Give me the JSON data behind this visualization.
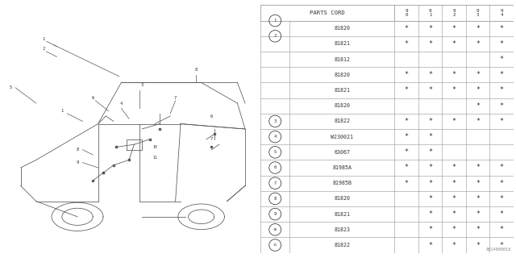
{
  "bg_color": "#ffffff",
  "line_color": "#aaaaaa",
  "text_color": "#333333",
  "header_parts": "PARTS CORD",
  "header_years": [
    "9\n0",
    "9\n1",
    "9\n2",
    "9\n3",
    "9\n4"
  ],
  "rows": [
    {
      "num": "1",
      "parts": [
        "81820",
        "81821"
      ],
      "stars": [
        [
          "*",
          "*",
          "*",
          "*",
          "*"
        ],
        [
          "*",
          "*",
          "*",
          "*",
          "*"
        ]
      ]
    },
    {
      "num": "2",
      "parts": [
        "81812",
        "81820",
        "81821",
        "81820"
      ],
      "stars": [
        [
          "",
          "",
          "",
          "",
          "*"
        ],
        [
          "*",
          "*",
          "*",
          "*",
          "*"
        ],
        [
          "*",
          "*",
          "*",
          "*",
          "*"
        ],
        [
          "",
          "",
          "",
          "*",
          "*"
        ]
      ]
    },
    {
      "num": "3",
      "parts": [
        "81822"
      ],
      "stars": [
        [
          "*",
          "*",
          "*",
          "*",
          "*"
        ]
      ]
    },
    {
      "num": "4",
      "parts": [
        "W230021"
      ],
      "stars": [
        [
          "*",
          "*",
          "",
          "",
          ""
        ]
      ]
    },
    {
      "num": "5",
      "parts": [
        "63067"
      ],
      "stars": [
        [
          "*",
          "*",
          "",
          "",
          ""
        ]
      ]
    },
    {
      "num": "6",
      "parts": [
        "81985A"
      ],
      "stars": [
        [
          "*",
          "*",
          "*",
          "*",
          "*"
        ]
      ]
    },
    {
      "num": "7",
      "parts": [
        "81985B"
      ],
      "stars": [
        [
          "*",
          "*",
          "*",
          "*",
          "*"
        ]
      ]
    },
    {
      "num": "8",
      "parts": [
        "81820"
      ],
      "stars": [
        [
          "",
          "*",
          "*",
          "*",
          "*"
        ]
      ]
    },
    {
      "num": "9",
      "parts": [
        "81821"
      ],
      "stars": [
        [
          "",
          "*",
          "*",
          "*",
          "*"
        ]
      ]
    },
    {
      "num": "10",
      "parts": [
        "81823"
      ],
      "stars": [
        [
          "",
          "*",
          "*",
          "*",
          "*"
        ]
      ]
    },
    {
      "num": "11",
      "parts": [
        "81822"
      ],
      "stars": [
        [
          "",
          "*",
          "*",
          "*",
          "*"
        ]
      ]
    }
  ],
  "footnote": "AB14000018"
}
